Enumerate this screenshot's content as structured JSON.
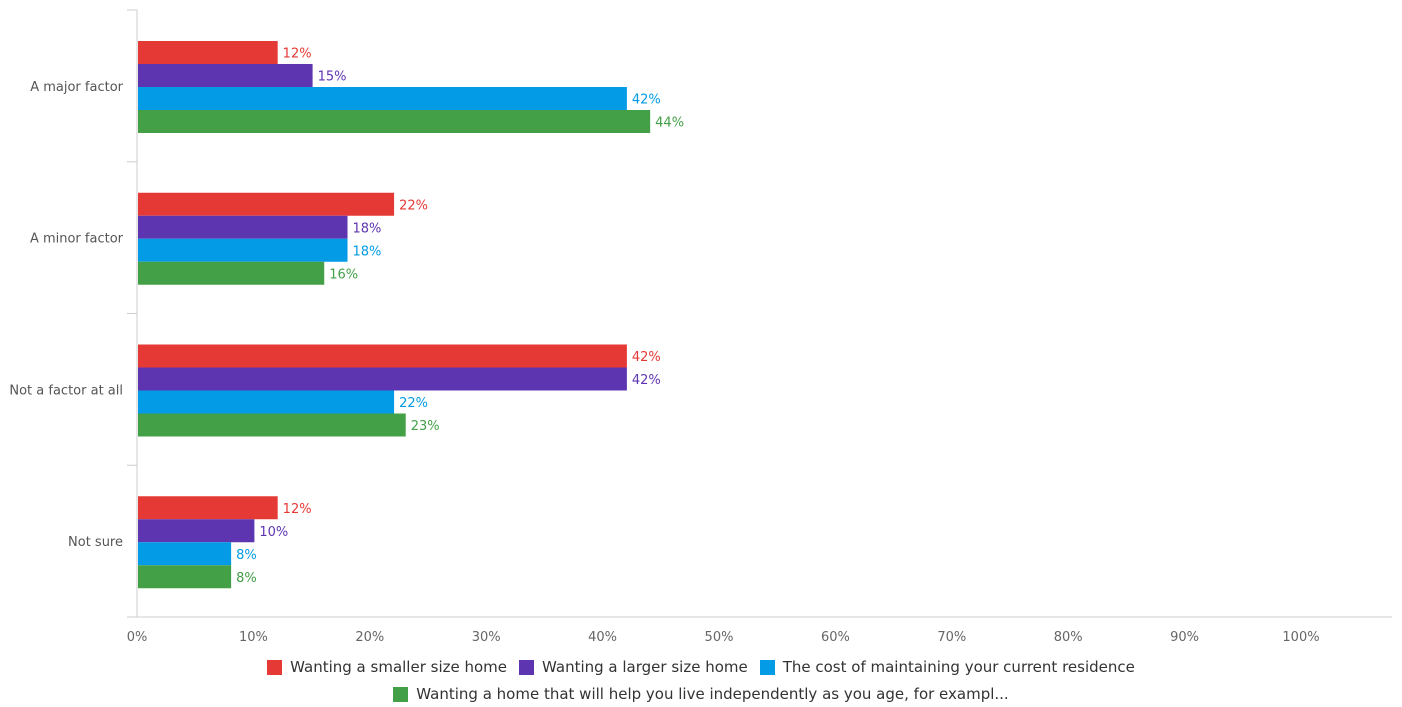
{
  "chart_data": {
    "type": "bar",
    "orientation": "horizontal",
    "categories": [
      "A major factor",
      "A minor factor",
      "Not a factor at all",
      "Not sure"
    ],
    "series": [
      {
        "name": "Wanting a smaller size home",
        "color": "#e53935",
        "values": [
          12,
          22,
          42,
          12
        ],
        "labels": [
          "12%",
          "22%",
          "42%",
          "12%"
        ]
      },
      {
        "name": "Wanting a larger size home",
        "color": "#5e35b1",
        "values": [
          15,
          18,
          42,
          10
        ],
        "labels": [
          "15%",
          "18%",
          "42%",
          "10%"
        ]
      },
      {
        "name": "The cost of maintaining your current residence",
        "color": "#039be5",
        "values": [
          42,
          18,
          22,
          8
        ],
        "labels": [
          "42%",
          "18%",
          "22%",
          "8%"
        ]
      },
      {
        "name": "Wanting a home that will help you live independently as you age, for exampl...",
        "color": "#43a047",
        "values": [
          44,
          16,
          23,
          8
        ],
        "labels": [
          "44%",
          "16%",
          "23%",
          "8%"
        ]
      }
    ],
    "x_ticks": [
      "0%",
      "10%",
      "20%",
      "30%",
      "40%",
      "50%",
      "60%",
      "70%",
      "80%",
      "90%",
      "100%"
    ],
    "xlim": [
      0,
      100
    ],
    "grid": false,
    "legend_position": "bottom"
  }
}
